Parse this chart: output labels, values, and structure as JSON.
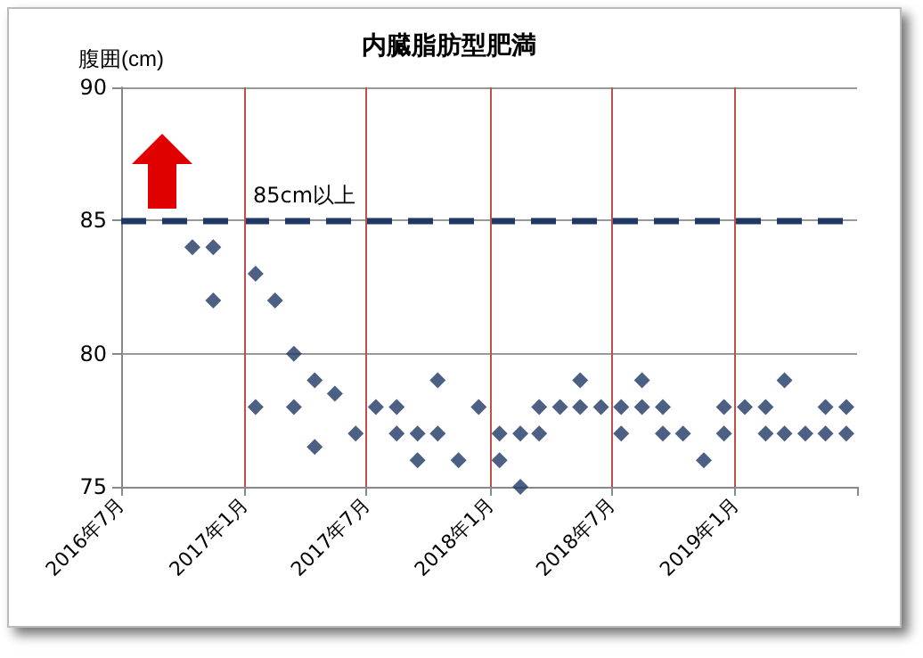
{
  "chart_data": {
    "type": "scatter",
    "title": "内臓脂肪型肥満",
    "ylabel": "腹囲(cm)",
    "x": [
      "2016-10-15",
      "2016-11-15",
      "2016-11-15",
      "2017-01-17",
      "2017-01-17",
      "2017-02-15",
      "2017-03-15",
      "2017-03-15",
      "2017-04-15",
      "2017-04-15",
      "2017-05-15",
      "2017-06-15",
      "2017-07-15",
      "2017-08-15",
      "2017-08-15",
      "2017-09-15",
      "2017-09-15",
      "2017-10-15",
      "2017-10-15",
      "2017-11-15",
      "2017-12-15",
      "2018-01-15",
      "2018-01-15",
      "2018-02-15",
      "2018-02-15",
      "2018-03-15",
      "2018-03-15",
      "2018-04-15",
      "2018-05-15",
      "2018-05-15",
      "2018-06-15",
      "2018-07-15",
      "2018-07-15",
      "2018-08-15",
      "2018-08-15",
      "2018-09-15",
      "2018-09-15",
      "2018-10-15",
      "2018-11-15",
      "2018-12-15",
      "2018-12-15",
      "2019-01-15",
      "2019-02-15",
      "2019-02-15",
      "2019-03-15",
      "2019-03-15",
      "2019-04-15",
      "2019-05-15",
      "2019-05-15",
      "2019-06-15",
      "2019-06-15"
    ],
    "values": [
      84,
      84,
      82,
      83,
      78,
      82,
      80,
      78,
      79,
      76.5,
      78.5,
      77,
      78,
      78,
      77,
      77,
      76,
      79,
      77,
      76,
      78,
      77,
      76,
      77,
      75,
      78,
      77,
      78,
      79,
      78,
      78,
      78,
      77,
      79,
      78,
      78,
      77,
      77,
      76,
      78,
      77,
      78,
      78,
      77,
      79,
      77,
      77,
      78,
      77,
      78,
      77
    ],
    "color": "#1f3864",
    "marker": "diamond",
    "xlim": [
      "2016-07",
      "2019-07"
    ],
    "xticks": [
      {
        "value": "2016-07",
        "label": "2016年7月"
      },
      {
        "value": "2017-01",
        "label": "2017年1月"
      },
      {
        "value": "2017-07",
        "label": "2017年7月"
      },
      {
        "value": "2018-01",
        "label": "2018年1月"
      },
      {
        "value": "2018-07",
        "label": "2018年7月"
      },
      {
        "value": "2019-01",
        "label": "2019年1月"
      },
      {
        "value": "2019-07",
        "label": null
      }
    ],
    "ylim": [
      75,
      90
    ],
    "yticks": [
      75,
      80,
      85,
      90
    ],
    "grid": "y",
    "ref_lines": [
      {
        "axis": "y",
        "value": 85,
        "label": "85cm以上",
        "color": "#1f3864",
        "line_style": "dashed"
      },
      {
        "axis": "x",
        "value": "2017-01",
        "label": null,
        "color": "#c0504d"
      },
      {
        "axis": "x",
        "value": "2017-07",
        "label": null,
        "color": "#c0504d"
      },
      {
        "axis": "x",
        "value": "2018-01",
        "label": null,
        "color": "#c0504d"
      },
      {
        "axis": "x",
        "value": "2018-07",
        "label": null,
        "color": "#c0504d"
      },
      {
        "axis": "x",
        "value": "2019-01",
        "label": null,
        "color": "#c0504d"
      }
    ]
  }
}
